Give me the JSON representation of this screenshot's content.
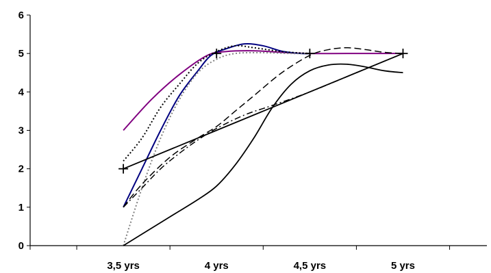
{
  "chart_data": {
    "type": "line",
    "title": "",
    "xlabel": "",
    "ylabel": "",
    "x_categories": [
      "3,5 yrs",
      "4 yrs",
      "4,5 yrs",
      "5 yrs"
    ],
    "x_positions": [
      3.5,
      4.0,
      4.5,
      5.0
    ],
    "xlim": [
      3.0,
      5.45
    ],
    "ylim": [
      0,
      6
    ],
    "y_ticks": [
      0,
      1,
      2,
      3,
      4,
      5,
      6
    ],
    "grid": false,
    "legend": "none",
    "series": [
      {
        "color": "#800080",
        "dash": "solid",
        "width": 2,
        "points": [
          [
            3.5,
            3.0
          ],
          [
            3.65,
            3.8
          ],
          [
            3.8,
            4.45
          ],
          [
            3.95,
            4.95
          ],
          [
            4.05,
            5.05
          ],
          [
            4.2,
            5.07
          ],
          [
            4.35,
            5.03
          ],
          [
            4.5,
            5.0
          ],
          [
            4.7,
            5.0
          ],
          [
            5.0,
            5.0
          ]
        ]
      },
      {
        "color": "#000080",
        "dash": "solid",
        "width": 2,
        "points": [
          [
            3.5,
            1.0
          ],
          [
            3.6,
            2.0
          ],
          [
            3.7,
            3.0
          ],
          [
            3.8,
            3.9
          ],
          [
            3.9,
            4.55
          ],
          [
            3.97,
            4.95
          ],
          [
            4.05,
            5.12
          ],
          [
            4.15,
            5.25
          ],
          [
            4.25,
            5.2
          ],
          [
            4.35,
            5.06
          ],
          [
            4.45,
            5.0
          ],
          [
            4.5,
            5.0
          ]
        ]
      },
      {
        "color": "#000000",
        "dash": "dotted",
        "width": 2,
        "points": [
          [
            3.5,
            2.2
          ],
          [
            3.6,
            2.8
          ],
          [
            3.7,
            3.6
          ],
          [
            3.8,
            4.2
          ],
          [
            3.9,
            4.75
          ],
          [
            4.0,
            5.05
          ],
          [
            4.1,
            5.2
          ],
          [
            4.2,
            5.15
          ],
          [
            4.35,
            5.05
          ],
          [
            4.5,
            5.0
          ]
        ]
      },
      {
        "color": "#808080",
        "dash": "dotted",
        "width": 2,
        "points": [
          [
            3.5,
            0.0
          ],
          [
            3.6,
            1.5
          ],
          [
            3.7,
            2.8
          ],
          [
            3.8,
            3.8
          ],
          [
            3.9,
            4.5
          ],
          [
            4.0,
            4.85
          ],
          [
            4.1,
            5.0
          ],
          [
            4.25,
            5.02
          ],
          [
            4.4,
            5.0
          ],
          [
            4.5,
            5.0
          ]
        ]
      },
      {
        "color": "#000000",
        "dash": "longdash",
        "width": 1.5,
        "points": [
          [
            3.5,
            1.0
          ],
          [
            3.6,
            1.6
          ],
          [
            3.75,
            2.3
          ],
          [
            3.9,
            2.8
          ],
          [
            4.0,
            3.1
          ],
          [
            4.1,
            3.5
          ],
          [
            4.2,
            3.9
          ],
          [
            4.35,
            4.5
          ],
          [
            4.5,
            4.95
          ],
          [
            4.6,
            5.1
          ],
          [
            4.7,
            5.15
          ],
          [
            4.8,
            5.1
          ],
          [
            4.9,
            5.03
          ],
          [
            5.0,
            5.0
          ]
        ]
      },
      {
        "color": "#000000",
        "dash": "dashdot",
        "width": 1.5,
        "points": [
          [
            3.5,
            1.0
          ],
          [
            3.6,
            1.5
          ],
          [
            3.7,
            2.0
          ],
          [
            3.8,
            2.4
          ],
          [
            3.9,
            2.75
          ],
          [
            4.0,
            3.05
          ],
          [
            4.15,
            3.4
          ],
          [
            4.3,
            3.65
          ],
          [
            4.5,
            4.0
          ],
          [
            4.75,
            4.5
          ],
          [
            5.0,
            5.0
          ]
        ]
      },
      {
        "color": "#000000",
        "dash": "solid",
        "width": 1.8,
        "points": [
          [
            3.5,
            0.0
          ],
          [
            3.6,
            0.3
          ],
          [
            3.75,
            0.75
          ],
          [
            3.9,
            1.2
          ],
          [
            4.0,
            1.55
          ],
          [
            4.1,
            2.1
          ],
          [
            4.2,
            2.8
          ],
          [
            4.3,
            3.6
          ],
          [
            4.4,
            4.2
          ],
          [
            4.5,
            4.55
          ],
          [
            4.6,
            4.7
          ],
          [
            4.7,
            4.72
          ],
          [
            4.8,
            4.65
          ],
          [
            4.9,
            4.55
          ],
          [
            5.0,
            4.5
          ]
        ]
      },
      {
        "color": "#000000",
        "dash": "solid",
        "width": 1.8,
        "points": [
          [
            3.5,
            2.0
          ],
          [
            4.0,
            3.0
          ],
          [
            4.5,
            4.0
          ],
          [
            5.0,
            5.0
          ]
        ]
      }
    ],
    "markers": {
      "symbol": "plus",
      "color": "#000000",
      "points": [
        [
          3.5,
          2.0
        ],
        [
          4.0,
          5.0
        ],
        [
          4.5,
          5.0
        ],
        [
          5.0,
          5.0
        ]
      ]
    }
  }
}
